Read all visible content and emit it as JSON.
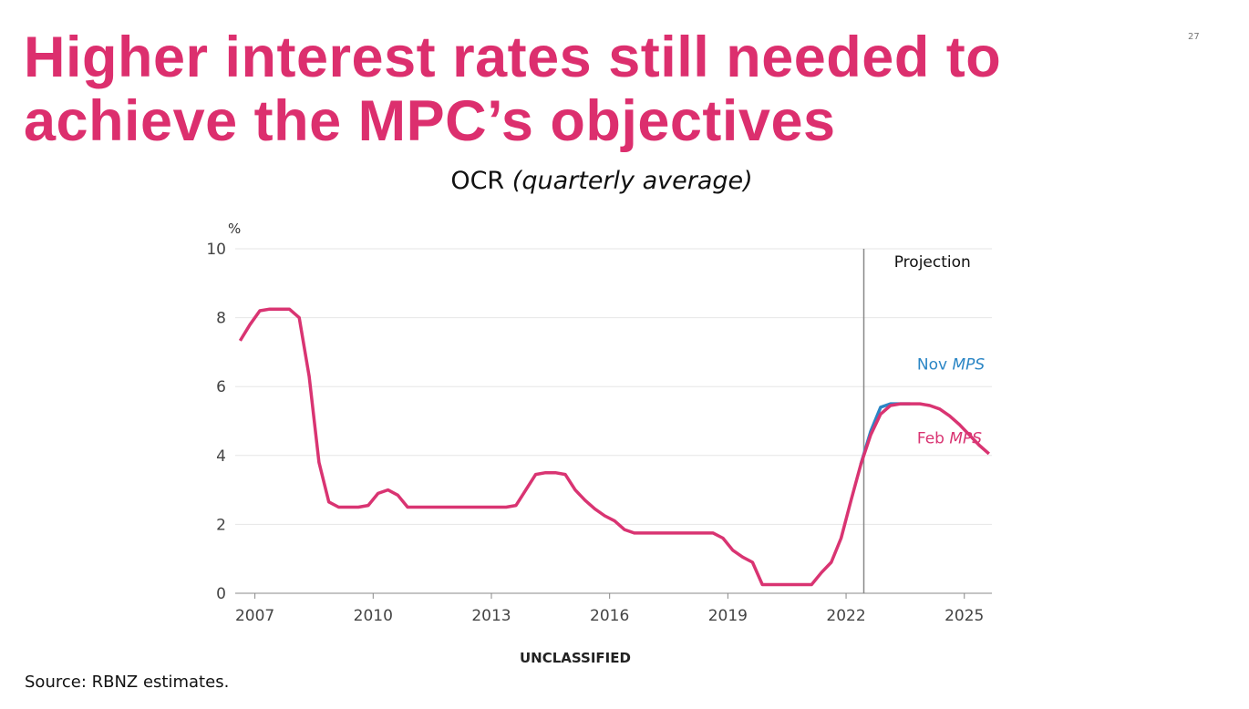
{
  "slide": {
    "title": "Higher interest rates still needed to achieve the MPC’s objectives",
    "page_number": "27",
    "classification": "UNCLASSIFIED",
    "source": "Source: RBNZ estimates."
  },
  "chart_data": {
    "type": "line",
    "title": "OCR",
    "subtitle": "(quarterly average)",
    "y_label": "%",
    "xlim": [
      2006.5,
      2025.7
    ],
    "xticks": [
      2007,
      2010,
      2013,
      2016,
      2019,
      2022,
      2025
    ],
    "ylim": [
      0,
      10
    ],
    "yticks": [
      0,
      2,
      4,
      6,
      8,
      10
    ],
    "grid": true,
    "projection": {
      "label": "Projection",
      "x": 2022.45
    },
    "x": [
      2006.625,
      2006.875,
      2007.125,
      2007.375,
      2007.625,
      2007.875,
      2008.125,
      2008.375,
      2008.625,
      2008.875,
      2009.125,
      2009.375,
      2009.625,
      2009.875,
      2010.125,
      2010.375,
      2010.625,
      2010.875,
      2011.125,
      2011.375,
      2011.625,
      2011.875,
      2012.125,
      2012.375,
      2012.625,
      2012.875,
      2013.125,
      2013.375,
      2013.625,
      2013.875,
      2014.125,
      2014.375,
      2014.625,
      2014.875,
      2015.125,
      2015.375,
      2015.625,
      2015.875,
      2016.125,
      2016.375,
      2016.625,
      2016.875,
      2017.125,
      2017.375,
      2017.625,
      2017.875,
      2018.125,
      2018.375,
      2018.625,
      2018.875,
      2019.125,
      2019.375,
      2019.625,
      2019.875,
      2020.125,
      2020.375,
      2020.625,
      2020.875,
      2021.125,
      2021.375,
      2021.625,
      2021.875,
      2022.125,
      2022.375,
      2022.625,
      2022.875,
      2023.125,
      2023.375,
      2023.625,
      2023.875,
      2024.125,
      2024.375,
      2024.625,
      2024.875,
      2025.125,
      2025.375,
      2025.625
    ],
    "series": [
      {
        "name": "Nov MPS",
        "color": "#2b86c5",
        "label_pos": [
          2023.8,
          6.5
        ],
        "values": [
          null,
          null,
          null,
          null,
          null,
          null,
          null,
          null,
          null,
          null,
          null,
          null,
          null,
          null,
          null,
          null,
          null,
          null,
          null,
          null,
          null,
          null,
          null,
          null,
          null,
          null,
          null,
          null,
          null,
          null,
          null,
          null,
          null,
          null,
          null,
          null,
          null,
          null,
          null,
          null,
          null,
          null,
          null,
          null,
          null,
          null,
          null,
          null,
          null,
          null,
          null,
          null,
          null,
          null,
          null,
          null,
          null,
          null,
          null,
          null,
          null,
          null,
          null,
          3.75,
          4.7,
          5.4,
          5.5,
          5.5,
          5.5,
          null,
          null,
          null,
          null,
          null,
          null,
          null,
          null
        ]
      },
      {
        "name": "Feb MPS",
        "color": "#d93472",
        "label_pos": [
          2023.8,
          4.35
        ],
        "values": [
          7.33,
          7.8,
          8.2,
          8.25,
          8.25,
          8.25,
          8.0,
          6.3,
          3.8,
          2.65,
          2.5,
          2.5,
          2.5,
          2.55,
          2.9,
          3.0,
          2.85,
          2.5,
          2.5,
          2.5,
          2.5,
          2.5,
          2.5,
          2.5,
          2.5,
          2.5,
          2.5,
          2.5,
          2.55,
          3.0,
          3.45,
          3.5,
          3.5,
          3.45,
          3.0,
          2.7,
          2.45,
          2.25,
          2.1,
          1.85,
          1.75,
          1.75,
          1.75,
          1.75,
          1.75,
          1.75,
          1.75,
          1.75,
          1.75,
          1.6,
          1.25,
          1.05,
          0.9,
          0.25,
          0.25,
          0.25,
          0.25,
          0.25,
          0.25,
          0.6,
          0.9,
          1.6,
          2.7,
          3.75,
          4.6,
          5.2,
          5.45,
          5.5,
          5.5,
          5.5,
          5.45,
          5.35,
          5.15,
          4.9,
          4.6,
          4.3,
          4.05
        ]
      }
    ]
  }
}
